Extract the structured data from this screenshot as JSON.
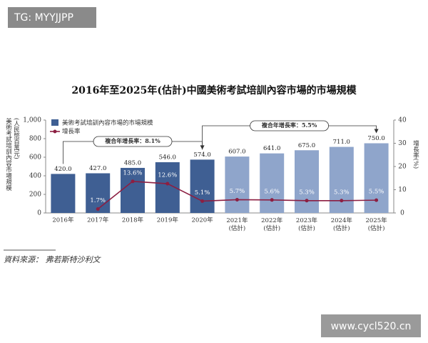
{
  "chart_data": {
    "type": "bar",
    "title": "2016年至2025年(估計)中國美術考試培訓內容市場的市場規模",
    "categories": [
      "2016年",
      "2017年",
      "2018年",
      "2019年",
      "2020年",
      "2021年\n(估計)",
      "2022年\n(估計)",
      "2023年\n(估計)",
      "2024年\n(估計)",
      "2025年\n(估計)"
    ],
    "series": [
      {
        "name": "美術考試培訓內容市場的市場規模",
        "colors": [
          "#3f5f93",
          "#3f5f93",
          "#3f5f93",
          "#3f5f93",
          "#3f5f93",
          "#8fa5cb",
          "#8fa5cb",
          "#8fa5cb",
          "#8fa5cb",
          "#8fa5cb"
        ],
        "values": [
          420,
          427,
          485,
          546,
          574,
          607,
          641,
          675,
          711,
          750
        ],
        "value_labels": [
          "420.0",
          "427.0",
          "485.0",
          "546.0",
          "574.0",
          "607.0",
          "641.0",
          "675.0",
          "711.0",
          "750.0"
        ]
      },
      {
        "name": "增長率",
        "type": "line",
        "axis": "y2",
        "color": "#8c1f42",
        "values": [
          null,
          1.7,
          13.6,
          12.6,
          5.1,
          5.7,
          5.6,
          5.3,
          5.3,
          5.5
        ],
        "value_labels": [
          null,
          "1.7%",
          "13.6%",
          "12.6%",
          "5.1%",
          "5.7%",
          "5.6%",
          "5.3%",
          "5.3%",
          "5.5%"
        ]
      }
    ],
    "ylim": [
      0,
      1000
    ],
    "yticks": [
      0,
      200,
      400,
      600,
      800,
      {
        "value": 1000,
        "label": "1,000"
      }
    ],
    "y2lim": [
      0,
      40
    ],
    "y2ticks": [
      0,
      10,
      20,
      30,
      40
    ],
    "y_label": [
      "美術考試培訓內容市場規模",
      "(人民幣百萬元)"
    ],
    "y2_label": "增長率(%)",
    "annotations": [
      "複合年增長率：8.1%",
      "複合年增長率：5.5%"
    ],
    "source": "資料來源： 弗若斯特沙利文"
  },
  "watermarks": [
    "TG: MYYJJPP",
    "www.cycl520.cn"
  ]
}
